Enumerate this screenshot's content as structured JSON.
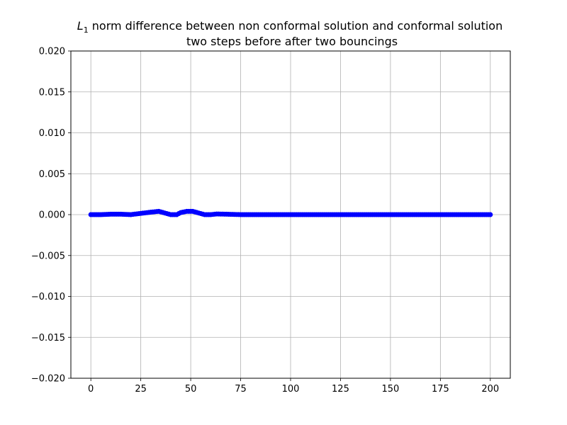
{
  "chart_data": {
    "type": "scatter",
    "title": {
      "symbol": "L",
      "subscript": "1",
      "line1_rest": " norm difference between non conformal solution and conformal solution",
      "line2": "two steps before after two bouncings"
    },
    "xlabel": "",
    "ylabel": "",
    "xlim": [
      -10,
      210
    ],
    "ylim": [
      -0.02,
      0.02
    ],
    "xticks": [
      0,
      25,
      50,
      75,
      100,
      125,
      150,
      175,
      200
    ],
    "xtick_labels": [
      "0",
      "25",
      "50",
      "75",
      "100",
      "125",
      "150",
      "175",
      "200"
    ],
    "yticks": [
      -0.02,
      -0.015,
      -0.01,
      -0.005,
      0.0,
      0.005,
      0.01,
      0.015,
      0.02
    ],
    "ytick_labels": [
      "−0.020",
      "−0.015",
      "−0.010",
      "−0.005",
      "0.000",
      "0.005",
      "0.010",
      "0.015",
      "0.020"
    ],
    "grid": true,
    "marker_color": "#0000ff",
    "series": [
      {
        "description_points": "x from 0 to 200 step 1",
        "x_start": 0,
        "x_end": 200,
        "x_step": 1,
        "y_keypoints": [
          [
            0,
            0.0
          ],
          [
            5,
            0.0
          ],
          [
            10,
            5e-05
          ],
          [
            15,
            5e-05
          ],
          [
            20,
            0.0
          ],
          [
            25,
            0.00015
          ],
          [
            30,
            0.0003
          ],
          [
            34,
            0.0004
          ],
          [
            37,
            0.0002
          ],
          [
            40,
            0.0
          ],
          [
            43,
            0.0
          ],
          [
            45,
            0.00025
          ],
          [
            48,
            0.0004
          ],
          [
            51,
            0.0004
          ],
          [
            54,
            0.0002
          ],
          [
            57,
            0.0
          ],
          [
            60,
            0.0
          ],
          [
            63,
            8e-05
          ],
          [
            68,
            5e-05
          ],
          [
            75,
            0.0
          ],
          [
            200,
            0.0
          ]
        ]
      }
    ]
  }
}
